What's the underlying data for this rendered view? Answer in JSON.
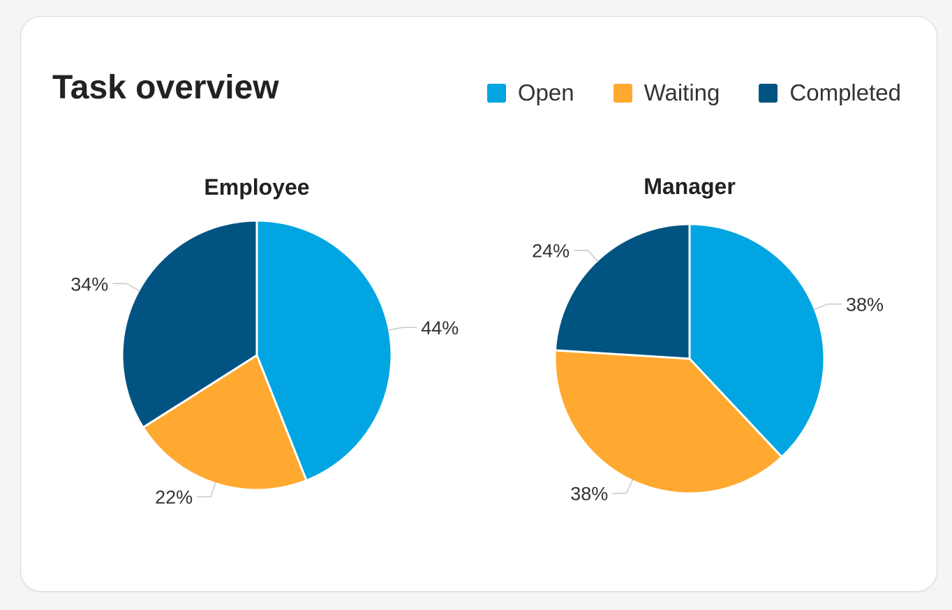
{
  "header": {
    "title": "Task overview"
  },
  "legend": [
    {
      "label": "Open",
      "color": "#00a5e2"
    },
    {
      "label": "Waiting",
      "color": "#ffa931"
    },
    {
      "label": "Completed",
      "color": "#015482"
    }
  ],
  "chart_data": [
    {
      "type": "pie",
      "title": "Employee",
      "categories": [
        "Open",
        "Waiting",
        "Completed"
      ],
      "values": [
        44,
        22,
        34
      ],
      "labels": [
        "44%",
        "22%",
        "34%"
      ],
      "colors": [
        "#00a5e2",
        "#ffa931",
        "#015482"
      ]
    },
    {
      "type": "pie",
      "title": "Manager",
      "categories": [
        "Open",
        "Waiting",
        "Completed"
      ],
      "values": [
        38,
        38,
        24
      ],
      "labels": [
        "38%",
        "38%",
        "24%"
      ],
      "colors": [
        "#00a5e2",
        "#ffa931",
        "#015482"
      ]
    }
  ]
}
